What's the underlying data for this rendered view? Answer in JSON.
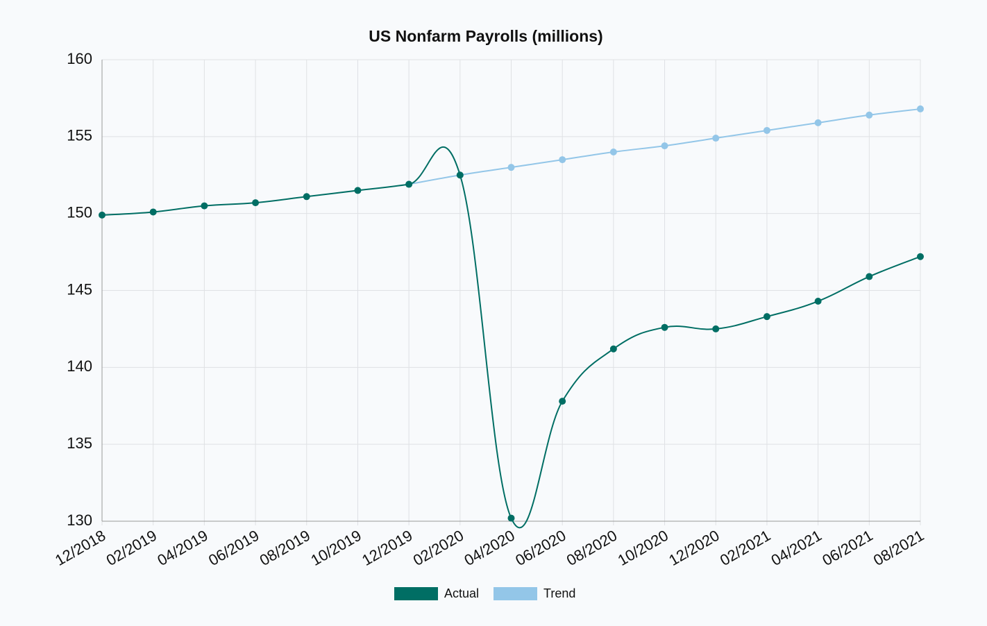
{
  "chart_data": {
    "type": "line",
    "title": "US Nonfarm Payrolls  (millions)",
    "categories": [
      "12/2018",
      "02/2019",
      "04/2019",
      "06/2019",
      "08/2019",
      "10/2019",
      "12/2019",
      "02/2020",
      "04/2020",
      "06/2020",
      "08/2020",
      "10/2020",
      "12/2020",
      "02/2021",
      "04/2021",
      "06/2021",
      "08/2021"
    ],
    "series": [
      {
        "name": "Actual",
        "color": "#006e64",
        "values": [
          149.9,
          150.1,
          150.5,
          150.7,
          151.1,
          151.5,
          151.9,
          152.5,
          130.2,
          137.8,
          141.2,
          142.6,
          142.5,
          143.3,
          144.3,
          145.9,
          147.2
        ]
      },
      {
        "name": "Trend",
        "color": "#93c6e8",
        "values": [
          null,
          null,
          null,
          null,
          null,
          null,
          151.9,
          152.5,
          153.0,
          153.5,
          154.0,
          154.4,
          154.9,
          155.4,
          155.9,
          156.4,
          156.8
        ]
      }
    ],
    "ylim": [
      130,
      160
    ],
    "yticks": [
      130,
      135,
      140,
      145,
      150,
      155,
      160
    ],
    "grid": true,
    "legend": "bottom"
  }
}
